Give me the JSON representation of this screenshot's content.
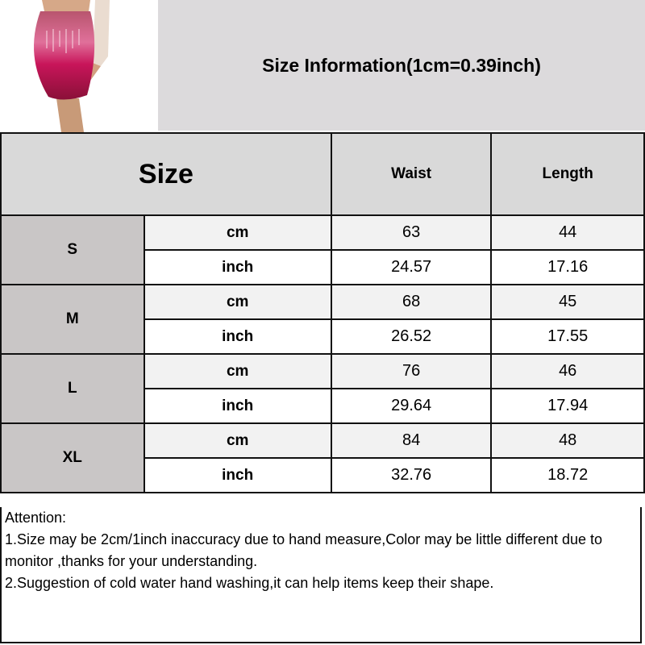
{
  "banner": {
    "title": "Size Information(1cm=0.39inch)"
  },
  "photo": {
    "subject": "sequin-skirt-photo",
    "colors": {
      "sequins": "#c0185a",
      "skin": "#c89a78"
    }
  },
  "table": {
    "headers": {
      "size": "Size",
      "waist": "Waist",
      "length": "Length"
    },
    "rows": [
      {
        "size": "S",
        "cm": {
          "unit": "cm",
          "waist": "63",
          "length": "44"
        },
        "inch": {
          "unit": "inch",
          "waist": "24.57",
          "length": "17.16"
        }
      },
      {
        "size": "M",
        "cm": {
          "unit": "cm",
          "waist": "68",
          "length": "45"
        },
        "inch": {
          "unit": "inch",
          "waist": "26.52",
          "length": "17.55"
        }
      },
      {
        "size": "L",
        "cm": {
          "unit": "cm",
          "waist": "76",
          "length": "46"
        },
        "inch": {
          "unit": "inch",
          "waist": "29.64",
          "length": "17.94"
        }
      },
      {
        "size": "XL",
        "cm": {
          "unit": "cm",
          "waist": "84",
          "length": "48"
        },
        "inch": {
          "unit": "inch",
          "waist": "32.76",
          "length": "18.72"
        }
      }
    ]
  },
  "notes": {
    "heading": "Attention:",
    "line1": "1.Size may be 2cm/1inch inaccuracy due to hand measure,Color may be little different due to monitor ,thanks for your understanding.",
    "line2": "2.Suggestion of cold water hand washing,it can help items keep their shape."
  }
}
